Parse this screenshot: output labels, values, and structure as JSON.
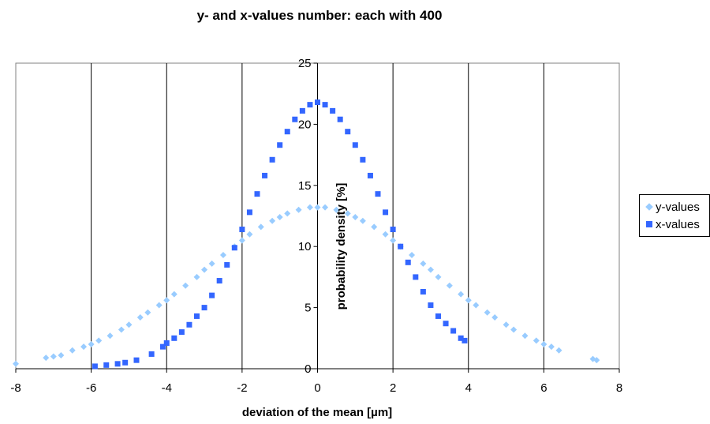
{
  "chart_data": {
    "type": "scatter",
    "title": "y- and x-values number: each with 400",
    "xlabel": "deviation of the mean [µm]",
    "ylabel": "probability density [%]",
    "xlim": [
      -8,
      8
    ],
    "ylim": [
      0,
      25
    ],
    "x_ticks": [
      "-8",
      "-6",
      "-4",
      "-2",
      "0",
      "2",
      "4",
      "6",
      "8"
    ],
    "y_ticks": [
      "0",
      "5",
      "10",
      "15",
      "20",
      "25"
    ],
    "grid": "vertical",
    "legend_position": "right",
    "series": [
      {
        "name": "y-values",
        "marker": "diamond",
        "color": "#99CCFF",
        "points": [
          [
            -8.0,
            0.4
          ],
          [
            -7.2,
            0.9
          ],
          [
            -7.0,
            1.0
          ],
          [
            -6.8,
            1.1
          ],
          [
            -6.5,
            1.5
          ],
          [
            -6.2,
            1.8
          ],
          [
            -6.0,
            2.0
          ],
          [
            -5.8,
            2.3
          ],
          [
            -5.5,
            2.7
          ],
          [
            -5.2,
            3.2
          ],
          [
            -5.0,
            3.6
          ],
          [
            -4.7,
            4.2
          ],
          [
            -4.5,
            4.6
          ],
          [
            -4.2,
            5.2
          ],
          [
            -4.0,
            5.6
          ],
          [
            -3.8,
            6.1
          ],
          [
            -3.5,
            6.8
          ],
          [
            -3.2,
            7.5
          ],
          [
            -3.0,
            8.1
          ],
          [
            -2.8,
            8.6
          ],
          [
            -2.5,
            9.3
          ],
          [
            -2.2,
            10.0
          ],
          [
            -2.0,
            10.5
          ],
          [
            -1.8,
            11.0
          ],
          [
            -1.5,
            11.6
          ],
          [
            -1.2,
            12.1
          ],
          [
            -1.0,
            12.4
          ],
          [
            -0.8,
            12.7
          ],
          [
            -0.5,
            13.0
          ],
          [
            -0.2,
            13.2
          ],
          [
            0.0,
            13.2
          ],
          [
            0.2,
            13.2
          ],
          [
            0.5,
            13.0
          ],
          [
            0.8,
            12.7
          ],
          [
            1.0,
            12.4
          ],
          [
            1.2,
            12.1
          ],
          [
            1.5,
            11.6
          ],
          [
            1.8,
            11.0
          ],
          [
            2.0,
            10.5
          ],
          [
            2.2,
            10.0
          ],
          [
            2.5,
            9.3
          ],
          [
            2.8,
            8.6
          ],
          [
            3.0,
            8.1
          ],
          [
            3.2,
            7.5
          ],
          [
            3.5,
            6.8
          ],
          [
            3.8,
            6.1
          ],
          [
            4.0,
            5.6
          ],
          [
            4.2,
            5.2
          ],
          [
            4.5,
            4.6
          ],
          [
            4.7,
            4.2
          ],
          [
            5.0,
            3.6
          ],
          [
            5.2,
            3.2
          ],
          [
            5.5,
            2.7
          ],
          [
            5.8,
            2.3
          ],
          [
            6.0,
            2.0
          ],
          [
            6.2,
            1.8
          ],
          [
            6.4,
            1.5
          ],
          [
            7.3,
            0.8
          ],
          [
            7.4,
            0.7
          ]
        ]
      },
      {
        "name": "x-values",
        "marker": "square",
        "color": "#3366FF",
        "points": [
          [
            -5.9,
            0.2
          ],
          [
            -5.6,
            0.3
          ],
          [
            -5.3,
            0.4
          ],
          [
            -5.1,
            0.5
          ],
          [
            -4.8,
            0.7
          ],
          [
            -4.4,
            1.2
          ],
          [
            -4.1,
            1.8
          ],
          [
            -4.0,
            2.1
          ],
          [
            -3.8,
            2.5
          ],
          [
            -3.6,
            3.0
          ],
          [
            -3.4,
            3.6
          ],
          [
            -3.2,
            4.3
          ],
          [
            -3.0,
            5.0
          ],
          [
            -2.8,
            6.0
          ],
          [
            -2.6,
            7.2
          ],
          [
            -2.4,
            8.5
          ],
          [
            -2.2,
            9.9
          ],
          [
            -2.0,
            11.4
          ],
          [
            -1.8,
            12.8
          ],
          [
            -1.6,
            14.3
          ],
          [
            -1.4,
            15.8
          ],
          [
            -1.2,
            17.1
          ],
          [
            -1.0,
            18.3
          ],
          [
            -0.8,
            19.4
          ],
          [
            -0.6,
            20.4
          ],
          [
            -0.4,
            21.1
          ],
          [
            -0.2,
            21.6
          ],
          [
            0.0,
            21.8
          ],
          [
            0.2,
            21.6
          ],
          [
            0.4,
            21.1
          ],
          [
            0.6,
            20.4
          ],
          [
            0.8,
            19.4
          ],
          [
            1.0,
            18.3
          ],
          [
            1.2,
            17.1
          ],
          [
            1.4,
            15.8
          ],
          [
            1.6,
            14.3
          ],
          [
            1.8,
            12.8
          ],
          [
            2.0,
            11.4
          ],
          [
            2.2,
            10.0
          ],
          [
            2.4,
            8.7
          ],
          [
            2.6,
            7.5
          ],
          [
            2.8,
            6.3
          ],
          [
            3.0,
            5.2
          ],
          [
            3.2,
            4.3
          ],
          [
            3.4,
            3.7
          ],
          [
            3.6,
            3.1
          ],
          [
            3.8,
            2.5
          ],
          [
            3.9,
            2.3
          ]
        ]
      }
    ]
  }
}
